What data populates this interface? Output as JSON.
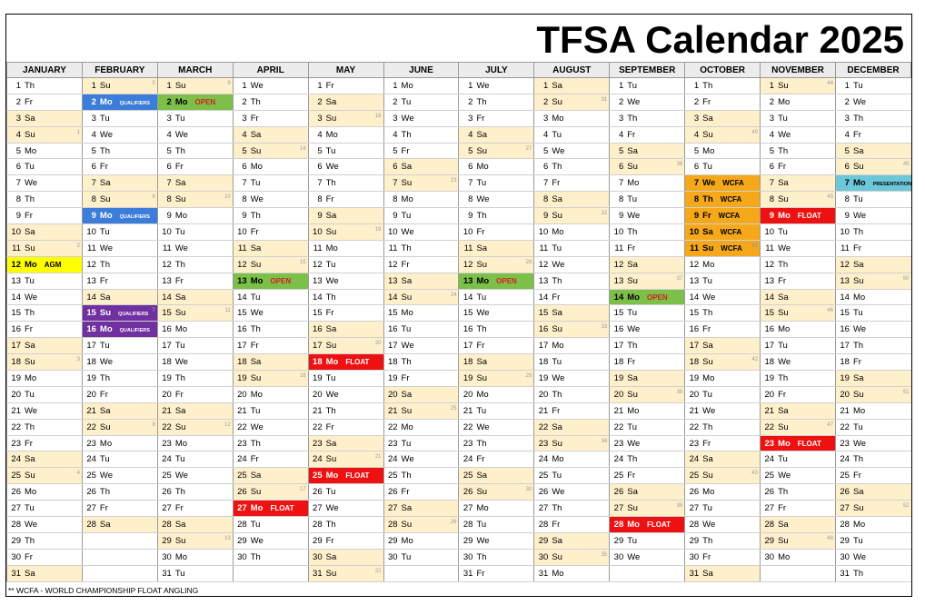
{
  "title": "TFSA Calendar 2025",
  "footnote": "** WCFA - WORLD CHAMPIONSHIP FLOAT ANGLING",
  "months": [
    "JANUARY",
    "FEBRUARY",
    "MARCH",
    "APRIL",
    "MAY",
    "JUNE",
    "JULY",
    "AUGUST",
    "SEPTEMBER",
    "OCTOBER",
    "NOVEMBER",
    "DECEMBER"
  ],
  "month_days": [
    31,
    28,
    31,
    30,
    31,
    30,
    31,
    31,
    30,
    31,
    30,
    31
  ],
  "first_weekday": [
    3,
    6,
    6,
    2,
    4,
    0,
    2,
    5,
    1,
    3,
    6,
    1
  ],
  "weekday_abbr": [
    "Mo",
    "Tu",
    "We",
    "Th",
    "Fr",
    "Sa",
    "Su"
  ],
  "colors": {
    "weekend": "#fff0cc",
    "blue": "#3b7dd8",
    "green": "#7cc04a",
    "yellow": "#ffff00",
    "purple": "#7030a0",
    "red": "#ee1111",
    "orange": "#f4a81a",
    "teal": "#6cc7d8"
  },
  "events": [
    {
      "month": 2,
      "day": 2,
      "label": "QUALIFIERS",
      "color": "blue"
    },
    {
      "month": 2,
      "day": 9,
      "label": "QUALIFIERS",
      "color": "blue"
    },
    {
      "month": 2,
      "day": 15,
      "label": "QUALIFIERS",
      "color": "purple"
    },
    {
      "month": 2,
      "day": 16,
      "label": "QUALIFIERS",
      "color": "purple"
    },
    {
      "month": 3,
      "day": 2,
      "label": "OPEN",
      "color": "green"
    },
    {
      "month": 1,
      "day": 12,
      "label": "AGM",
      "color": "yellow"
    },
    {
      "month": 4,
      "day": 13,
      "label": "OPEN",
      "color": "green"
    },
    {
      "month": 4,
      "day": 27,
      "label": "FLOAT",
      "color": "red"
    },
    {
      "month": 5,
      "day": 18,
      "label": "FLOAT",
      "color": "red"
    },
    {
      "month": 5,
      "day": 25,
      "label": "FLOAT",
      "color": "red"
    },
    {
      "month": 7,
      "day": 13,
      "label": "OPEN",
      "color": "green"
    },
    {
      "month": 9,
      "day": 14,
      "label": "OPEN",
      "color": "green"
    },
    {
      "month": 9,
      "day": 28,
      "label": "FLOAT",
      "color": "red"
    },
    {
      "month": 10,
      "day": 7,
      "label": "WCFA",
      "color": "orange"
    },
    {
      "month": 10,
      "day": 8,
      "label": "WCFA",
      "color": "orange"
    },
    {
      "month": 10,
      "day": 9,
      "label": "WCFA",
      "color": "orange"
    },
    {
      "month": 10,
      "day": 10,
      "label": "WCFA",
      "color": "orange"
    },
    {
      "month": 10,
      "day": 11,
      "label": "WCFA",
      "color": "orange"
    },
    {
      "month": 11,
      "day": 9,
      "label": "FLOAT",
      "color": "red"
    },
    {
      "month": 11,
      "day": 23,
      "label": "FLOAT",
      "color": "red"
    },
    {
      "month": 12,
      "day": 7,
      "label": "PRESENTATION",
      "color": "teal"
    }
  ]
}
